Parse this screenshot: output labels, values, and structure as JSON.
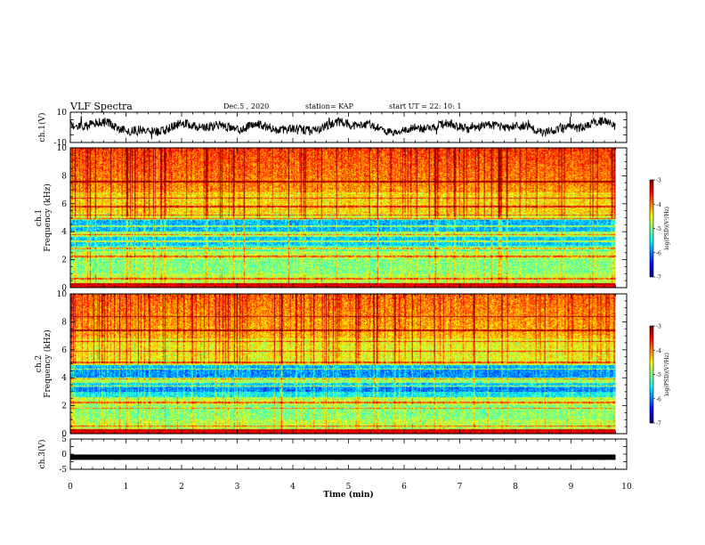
{
  "header": {
    "title": "VLF Spectra",
    "date": "Dec.5 , 2020",
    "station": "station= KAP",
    "start": "start UT = 22: 10: 1"
  },
  "chart_data": [
    {
      "type": "line",
      "name": "ch1-waveform",
      "ylabel": "ch.1(V)",
      "ylim": [
        -10,
        10
      ],
      "yticks": [
        "10",
        "-10"
      ],
      "xlim": [
        0,
        10
      ],
      "xdata_range": [
        0,
        9.8
      ],
      "color": "#000000"
    },
    {
      "type": "heatmap",
      "name": "ch1-spectrogram",
      "ylabel_line1": "ch.1",
      "ylabel_line2": "Frequency (kHz)",
      "ylim": [
        0,
        10
      ],
      "yticks": [
        "0",
        "2",
        "4",
        "6",
        "8",
        "10"
      ],
      "xlim": [
        0,
        10
      ],
      "xdata_range": [
        0,
        9.8
      ],
      "colorbar": {
        "label": "log(PSD)(V²/Hz)",
        "range": [
          -7,
          -3
        ],
        "ticks": [
          "-3",
          "-4",
          "-5",
          "-6",
          "-7"
        ]
      }
    },
    {
      "type": "heatmap",
      "name": "ch2-spectrogram",
      "ylabel_line1": "ch.2",
      "ylabel_line2": "Frequency (kHz)",
      "ylim": [
        0,
        10
      ],
      "yticks": [
        "0",
        "2",
        "4",
        "6",
        "8",
        "10"
      ],
      "xlim": [
        0,
        10
      ],
      "xdata_range": [
        0,
        9.8
      ],
      "colorbar": {
        "label": "log(PSD)(V²/Hz)",
        "range": [
          -7,
          -3
        ],
        "ticks": [
          "-3",
          "-4",
          "-5",
          "-6",
          "-7"
        ]
      }
    },
    {
      "type": "line",
      "name": "ch3-waveform",
      "ylabel": "ch.3(V)",
      "ylim": [
        -5,
        5
      ],
      "yticks": [
        "5",
        "0",
        "-5"
      ],
      "xlim": [
        0,
        10
      ],
      "xdata_range": [
        0,
        9.8
      ],
      "level": -1,
      "color": "#000000"
    }
  ],
  "xaxis": {
    "label": "Time (min)",
    "ticks": [
      "0",
      "1",
      "2",
      "3",
      "4",
      "5",
      "6",
      "7",
      "8",
      "9",
      "10"
    ]
  }
}
